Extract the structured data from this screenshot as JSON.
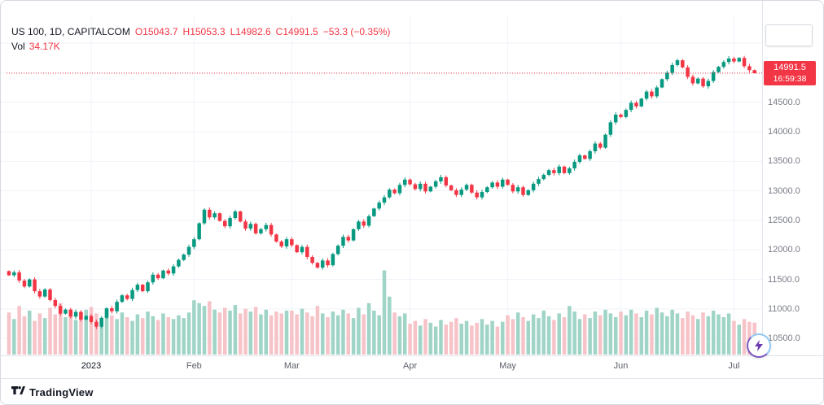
{
  "legend": {
    "symbol": "US 100, 1D, CAPITALCOM",
    "o": "O15043.7",
    "h": "H15053.3",
    "l": "L14982.6",
    "c": "C14991.5",
    "change": "−53.3 (−0.35%)",
    "vol_label": "Vol",
    "vol_value": "34.17K"
  },
  "price_scale": {
    "labels": [
      {
        "text": "14500.0",
        "price": 14500
      },
      {
        "text": "14000.0",
        "price": 14000
      },
      {
        "text": "13500.0",
        "price": 13500
      },
      {
        "text": "13000.0",
        "price": 13000
      },
      {
        "text": "12500.0",
        "price": 12500
      },
      {
        "text": "12000.0",
        "price": 12000
      },
      {
        "text": "11500.0",
        "price": 11500
      },
      {
        "text": "11000.0",
        "price": 11000
      },
      {
        "text": "10500.0",
        "price": 10500
      }
    ],
    "grid_prices": [
      15500,
      15000,
      14500,
      14000,
      13500,
      13000,
      12500,
      12000,
      11500,
      11000,
      10500
    ],
    "current_price_label": "14991.5",
    "countdown": "16:59:38"
  },
  "time_scale": {
    "ticks": [
      {
        "label": "2023",
        "index": 16,
        "strong": true
      },
      {
        "label": "Feb",
        "index": 36,
        "strong": false
      },
      {
        "label": "Mar",
        "index": 55,
        "strong": false
      },
      {
        "label": "Apr",
        "index": 78,
        "strong": false
      },
      {
        "label": "May",
        "index": 97,
        "strong": false
      },
      {
        "label": "Jun",
        "index": 119,
        "strong": false
      },
      {
        "label": "Jul",
        "index": 141,
        "strong": false
      }
    ]
  },
  "footer": {
    "logo_text": "TradingView"
  },
  "colors": {
    "up": "#089981",
    "down": "#f23645",
    "vol_up": "#9fd4c6",
    "vol_down": "#f6c3c8",
    "grid": "#f0f3fa",
    "axis_text": "#787b86",
    "price_line": "#f23645",
    "label_bg": "#f23645",
    "bolt": "#6a3ab2"
  },
  "chart_data": {
    "type": "candlestick",
    "title": "US 100, 1D, CAPITALCOM",
    "x_ticks": [
      "2023",
      "Feb",
      "Mar",
      "Apr",
      "May",
      "Jun",
      "Jul"
    ],
    "y_range": [
      10200,
      16000
    ],
    "current_price": 14991.5,
    "first_open": 11640,
    "last_candle": {
      "o": 15043.7,
      "h": 15053.3,
      "l": 14982.6,
      "c": 14991.5
    },
    "closes": [
      11570,
      11620,
      11480,
      11380,
      11500,
      11300,
      11210,
      11330,
      11150,
      11050,
      10920,
      10990,
      10870,
      10950,
      10820,
      10880,
      10780,
      10700,
      10850,
      11010,
      10960,
      11120,
      11230,
      11170,
      11320,
      11410,
      11300,
      11450,
      11580,
      11520,
      11650,
      11600,
      11720,
      11830,
      11920,
      12050,
      12180,
      12450,
      12680,
      12550,
      12620,
      12490,
      12400,
      12540,
      12650,
      12480,
      12360,
      12440,
      12280,
      12350,
      12420,
      12260,
      12140,
      12060,
      12180,
      12080,
      11960,
      12050,
      11880,
      11780,
      11700,
      11820,
      11740,
      11930,
      12070,
      12220,
      12160,
      12350,
      12480,
      12410,
      12570,
      12700,
      12800,
      12890,
      13020,
      12960,
      13100,
      13190,
      13110,
      13030,
      13120,
      12990,
      13070,
      13160,
      13230,
      13090,
      13010,
      12930,
      13020,
      13100,
      12970,
      12890,
      12980,
      13060,
      13140,
      13070,
      13190,
      13100,
      12990,
      13060,
      12930,
      13010,
      13120,
      13200,
      13270,
      13350,
      13300,
      13410,
      13300,
      13380,
      13490,
      13600,
      13540,
      13670,
      13800,
      13730,
      13950,
      14160,
      14290,
      14250,
      14370,
      14490,
      14430,
      14560,
      14680,
      14600,
      14750,
      14890,
      15000,
      15130,
      15210,
      15090,
      14930,
      14820,
      14900,
      14770,
      14860,
      15010,
      15100,
      15180,
      15240,
      15190,
      15250,
      15110,
      15043.7,
      14991.5
    ],
    "volumes_k": [
      45,
      38,
      52,
      41,
      47,
      36,
      44,
      39,
      50,
      43,
      55,
      40,
      46,
      37,
      42,
      48,
      51,
      44,
      39,
      47,
      42,
      38,
      45,
      40,
      36,
      43,
      39,
      46,
      41,
      37,
      44,
      40,
      38,
      42,
      39,
      45,
      58,
      55,
      52,
      57,
      48,
      45,
      50,
      47,
      53,
      44,
      49,
      46,
      51,
      43,
      48,
      42,
      46,
      44,
      47,
      47,
      43,
      49,
      45,
      41,
      52,
      44,
      40,
      46,
      42,
      48,
      44,
      39,
      50,
      43,
      55,
      47,
      42,
      90,
      62,
      45,
      41,
      44,
      33,
      36,
      31,
      38,
      34,
      30,
      37,
      32,
      35,
      39,
      33,
      36,
      31,
      34,
      38,
      32,
      36,
      30,
      35,
      42,
      38,
      45,
      40,
      36,
      43,
      39,
      47,
      41,
      37,
      44,
      40,
      52,
      46,
      38,
      43,
      39,
      46,
      42,
      48,
      44,
      40,
      46,
      42,
      48,
      44,
      40,
      47,
      43,
      50,
      45,
      41,
      48,
      44,
      39,
      46,
      42,
      38,
      45,
      41,
      47,
      43,
      40,
      44,
      36,
      32,
      38,
      35,
      34.17
    ]
  }
}
